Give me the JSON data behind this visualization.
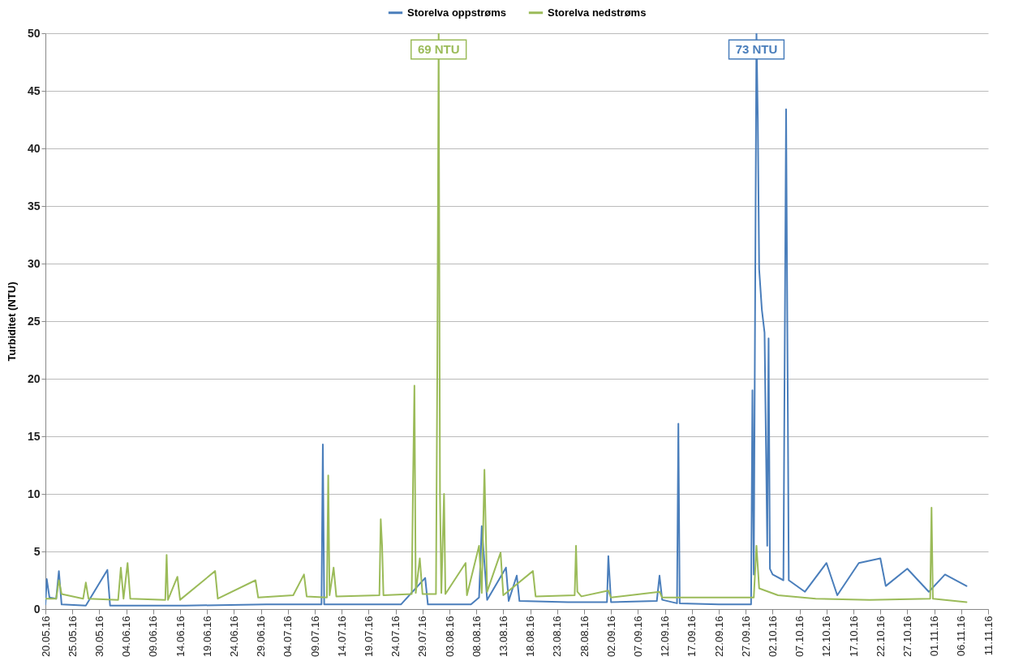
{
  "chart_data": {
    "type": "line",
    "ylabel": "Turbiditet (NTU)",
    "legend": "top",
    "grid": "y",
    "marker": "none",
    "line_style": "solid",
    "ylim": [
      0,
      50
    ],
    "yticks": [
      0,
      5,
      10,
      15,
      20,
      25,
      30,
      35,
      40,
      45,
      50
    ],
    "xlim": [
      "--05-20",
      "--11-11"
    ],
    "xticks": [
      {
        "value": "--05-20",
        "label": "20.05.16"
      },
      {
        "value": "--05-25",
        "label": "25.05.16"
      },
      {
        "value": "--05-30",
        "label": "30.05.16"
      },
      {
        "value": "--06-04",
        "label": "04.06.16"
      },
      {
        "value": "--06-09",
        "label": "09.06.16"
      },
      {
        "value": "--06-14",
        "label": "14.06.16"
      },
      {
        "value": "--06-19",
        "label": "19.06.16"
      },
      {
        "value": "--06-24",
        "label": "24.06.16"
      },
      {
        "value": "--06-29",
        "label": "29.06.16"
      },
      {
        "value": "--07-04",
        "label": "04.07.16"
      },
      {
        "value": "--07-09",
        "label": "09.07.16"
      },
      {
        "value": "--07-14",
        "label": "14.07.16"
      },
      {
        "value": "--07-19",
        "label": "19.07.16"
      },
      {
        "value": "--07-24",
        "label": "24.07.16"
      },
      {
        "value": "--07-29",
        "label": "29.07.16"
      },
      {
        "value": "--08-03",
        "label": "03.08.16"
      },
      {
        "value": "--08-08",
        "label": "08.08.16"
      },
      {
        "value": "--08-13",
        "label": "13.08.16"
      },
      {
        "value": "--08-18",
        "label": "18.08.16"
      },
      {
        "value": "--08-23",
        "label": "23.08.16"
      },
      {
        "value": "--08-28",
        "label": "28.08.16"
      },
      {
        "value": "--09-02",
        "label": "02.09.16"
      },
      {
        "value": "--09-07",
        "label": "07.09.16"
      },
      {
        "value": "--09-12",
        "label": "12.09.16"
      },
      {
        "value": "--09-17",
        "label": "17.09.16"
      },
      {
        "value": "--09-22",
        "label": "22.09.16"
      },
      {
        "value": "--09-27",
        "label": "27.09.16"
      },
      {
        "value": "--10-02",
        "label": "02.10.16"
      },
      {
        "value": "--10-07",
        "label": "07.10.16"
      },
      {
        "value": "--10-12",
        "label": "12.10.16"
      },
      {
        "value": "--10-17",
        "label": "17.10.16"
      },
      {
        "value": "--10-22",
        "label": "22.10.16"
      },
      {
        "value": "--10-27",
        "label": "27.10.16"
      },
      {
        "value": "--11-01",
        "label": "01.11.16"
      },
      {
        "value": "--11-06",
        "label": "06.11.16"
      },
      {
        "value": "--11-11",
        "label": "11.11.16"
      }
    ],
    "annotations": [
      {
        "text": "69 NTU",
        "x": "--08-01T00:00",
        "y": 50
      },
      {
        "text": "73 NTU",
        "x": "--09-29T00:00",
        "y": 50
      }
    ],
    "series": [
      {
        "name": "Storelva oppstrøms",
        "color": "#4a7ebb",
        "x": [
          "--05-20T00:00",
          "--05-20T06:00",
          "--05-20T18:00",
          "--05-22T00:00",
          "--05-22T12:00",
          "--05-23T00:00",
          "--05-27T12:00",
          "--05-31T12:00",
          "--06-01T00:00",
          "--06-15T00:00",
          "--06-30T00:00",
          "--07-10T06:00",
          "--07-10T12:00",
          "--07-10T18:00",
          "--07-25T00:00",
          "--07-29T12:00",
          "--07-30T00:00",
          "--08-07T00:00",
          "--08-08T12:00",
          "--08-09T00:00",
          "--08-09T12:00",
          "--08-10T00:00",
          "--08-13T12:00",
          "--08-14T00:00",
          "--08-15T12:00",
          "--08-16T00:00",
          "--08-25T00:00",
          "--09-01T06:00",
          "--09-01T12:00",
          "--09-02T00:00",
          "--09-10T12:00",
          "--09-11T00:00",
          "--09-11T12:00",
          "--09-14T06:00",
          "--09-14T12:00",
          "--09-14T18:00",
          "--09-22T00:00",
          "--09-28T00:00",
          "--09-28T06:00",
          "--09-28T12:00",
          "--09-29T00:00",
          "--09-29T06:00",
          "--09-29T12:00",
          "--09-30T00:00",
          "--09-30T12:00",
          "--10-01T00:00",
          "--10-01T06:00",
          "--10-01T12:00",
          "--10-02T00:00",
          "--10-04T00:00",
          "--10-04T12:00",
          "--10-05T00:00",
          "--10-08T00:00",
          "--10-12T00:00",
          "--10-14T00:00",
          "--10-18T00:00",
          "--10-22T00:00",
          "--10-23T00:00",
          "--10-27T00:00",
          "--10-31T00:00",
          "--11-03T00:00",
          "--11-07T00:00"
        ],
        "values": [
          0.4,
          2.6,
          1.0,
          0.9,
          3.3,
          0.4,
          0.3,
          3.4,
          0.3,
          0.3,
          0.4,
          0.4,
          14.3,
          0.4,
          0.4,
          2.7,
          0.4,
          0.4,
          1.0,
          7.2,
          4.0,
          0.8,
          3.6,
          0.7,
          2.9,
          0.7,
          0.6,
          0.6,
          4.6,
          0.6,
          0.7,
          2.9,
          0.8,
          0.5,
          16.1,
          0.5,
          0.4,
          0.4,
          19.0,
          3.0,
          50,
          42.5,
          29.5,
          26.0,
          24.0,
          5.5,
          23.5,
          3.5,
          3.0,
          2.5,
          43.4,
          2.5,
          1.5,
          4.0,
          1.2,
          4.0,
          4.4,
          2.0,
          3.5,
          1.5,
          3.0,
          2.0
        ]
      },
      {
        "name": "Storelva nedstrøms",
        "color": "#9bbb59",
        "x": [
          "--05-20T00:00",
          "--05-22T00:00",
          "--05-22T12:00",
          "--05-23T00:00",
          "--05-27T00:00",
          "--05-27T12:00",
          "--05-28T00:00",
          "--06-02T12:00",
          "--06-03T00:00",
          "--06-03T12:00",
          "--06-04T06:00",
          "--06-04T18:00",
          "--06-11T06:00",
          "--06-11T12:00",
          "--06-11T18:00",
          "--06-13T12:00",
          "--06-14T00:00",
          "--06-20T12:00",
          "--06-21T00:00",
          "--06-28T00:00",
          "--06-28T12:00",
          "--07-05T00:00",
          "--07-07T00:00",
          "--07-07T12:00",
          "--07-11T06:00",
          "--07-11T12:00",
          "--07-11T18:00",
          "--07-12T12:00",
          "--07-13T00:00",
          "--07-21T00:00",
          "--07-21T06:00",
          "--07-21T12:00",
          "--07-21T18:00",
          "--07-27T00:00",
          "--07-27T06:00",
          "--07-27T12:00",
          "--07-27T18:00",
          "--07-28T12:00",
          "--07-29T00:00",
          "--07-31T12:00",
          "--07-31T18:00",
          "--08-01T00:00",
          "--08-01T06:00",
          "--08-01T12:00",
          "--08-02T00:00",
          "--08-02T06:00",
          "--08-06T00:00",
          "--08-06T06:00",
          "--08-08T12:00",
          "--08-09T00:00",
          "--08-09T12:00",
          "--08-10T00:00",
          "--08-12T12:00",
          "--08-13T00:00",
          "--08-18T12:00",
          "--08-19T00:00",
          "--08-26T06:00",
          "--08-26T12:00",
          "--08-26T18:00",
          "--08-27T12:00",
          "--09-01T12:00",
          "--09-02T00:00",
          "--09-11T00:00",
          "--09-11T12:00",
          "--09-22T00:00",
          "--09-28T12:00",
          "--09-29T00:00",
          "--09-29T12:00",
          "--10-03T00:00",
          "--10-10T00:00",
          "--10-20T00:00",
          "--10-31T06:00",
          "--10-31T12:00",
          "--10-31T18:00",
          "--11-07T00:00"
        ],
        "values": [
          0.9,
          0.9,
          2.5,
          1.3,
          0.9,
          2.3,
          0.9,
          0.8,
          3.6,
          0.9,
          4.0,
          0.9,
          0.8,
          4.7,
          0.8,
          2.8,
          0.8,
          3.3,
          0.9,
          2.5,
          1.0,
          1.2,
          3.0,
          1.1,
          1.0,
          11.6,
          1.2,
          3.6,
          1.1,
          1.2,
          7.8,
          5.5,
          1.2,
          1.3,
          11.2,
          19.4,
          1.4,
          4.4,
          1.3,
          1.3,
          21.0,
          50,
          9.8,
          1.4,
          10.0,
          1.3,
          4.0,
          1.2,
          5.5,
          1.4,
          12.1,
          1.5,
          4.9,
          1.2,
          3.3,
          1.1,
          1.2,
          5.5,
          1.5,
          1.1,
          1.6,
          1.0,
          1.5,
          1.0,
          1.0,
          1.0,
          5.5,
          1.8,
          1.2,
          0.9,
          0.8,
          0.9,
          8.8,
          0.9,
          0.6
        ]
      }
    ]
  }
}
